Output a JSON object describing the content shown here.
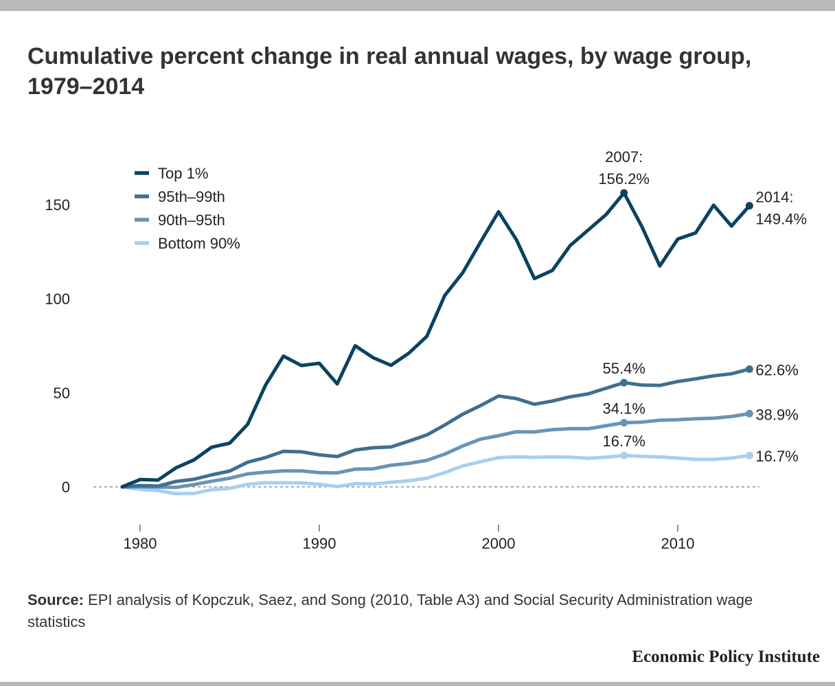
{
  "title": "Cumulative percent change in real annual wages, by wage group, 1979–2014",
  "source": {
    "label": "Source:",
    "text": "EPI analysis of Kopczuk, Saez, and Song (2010, Table A3) and Social Security Administration wage statistics"
  },
  "brand": "Economic Policy Institute",
  "chart_data": {
    "type": "line",
    "title": "Cumulative percent change in real annual wages, by wage group, 1979–2014",
    "xlabel": "",
    "ylabel": "",
    "xlim": [
      1978,
      2015.5
    ],
    "ylim": [
      -20,
      165
    ],
    "x_ticks": [
      1980,
      1990,
      2000,
      2010
    ],
    "y_ticks": [
      0,
      50,
      100,
      150
    ],
    "grid": false,
    "baseline": 0,
    "legend_position": "top-left",
    "x": [
      1979,
      1980,
      1981,
      1982,
      1983,
      1984,
      1985,
      1986,
      1987,
      1988,
      1989,
      1990,
      1991,
      1992,
      1993,
      1994,
      1995,
      1996,
      1997,
      1998,
      1999,
      2000,
      2001,
      2002,
      2003,
      2004,
      2005,
      2006,
      2007,
      2008,
      2009,
      2010,
      2011,
      2012,
      2013,
      2014
    ],
    "series": [
      {
        "name": "Top 1%",
        "color": "#0b4262",
        "values": [
          0,
          3.9,
          3.6,
          10.1,
          14.3,
          21.1,
          23.2,
          33.2,
          54.1,
          69.5,
          64.5,
          65.7,
          54.7,
          75,
          68.7,
          64.6,
          71.1,
          80,
          101.7,
          113.8,
          130.2,
          146.2,
          131.3,
          110.7,
          115,
          128.3,
          136.5,
          144.7,
          156.2,
          138.3,
          117.4,
          131.7,
          135,
          149.7,
          138.6,
          149.4
        ]
      },
      {
        "name": "95th–99th",
        "color": "#3f6f91",
        "values": [
          0,
          0.7,
          0.4,
          2.9,
          4,
          6.4,
          8.4,
          13.1,
          15.6,
          18.9,
          18.6,
          17,
          16.1,
          19.6,
          20.8,
          21.2,
          24.3,
          27.6,
          32.9,
          38.6,
          43.2,
          48.3,
          46.9,
          43.9,
          45.6,
          47.9,
          49.4,
          52.4,
          55.4,
          54.1,
          53.9,
          56,
          57.4,
          59,
          60.1,
          62.6
        ]
      },
      {
        "name": "90th–95th",
        "color": "#6694b9",
        "values": [
          0,
          0,
          -0.1,
          -0.3,
          1.2,
          3,
          4.6,
          6.9,
          7.8,
          8.5,
          8.5,
          7.6,
          7.4,
          9.4,
          9.6,
          11.5,
          12.5,
          14.1,
          17.4,
          21.7,
          25.4,
          27.2,
          29.3,
          29.2,
          30.4,
          30.9,
          30.9,
          32.5,
          34.1,
          34.4,
          35.4,
          35.7,
          36.2,
          36.5,
          37.4,
          38.9
        ]
      },
      {
        "name": "Bottom 90%",
        "color": "#a9cfee",
        "values": [
          0,
          -1.4,
          -2,
          -3.6,
          -3.5,
          -1.5,
          -0.8,
          1.4,
          2.2,
          2.2,
          2.1,
          1.4,
          0.1,
          1.7,
          1.5,
          2.4,
          3.3,
          4.6,
          7.6,
          11.1,
          13.4,
          15.5,
          16,
          15.7,
          15.9,
          15.8,
          15.2,
          15.8,
          16.7,
          16.2,
          15.9,
          15.3,
          14.6,
          14.6,
          15.3,
          16.7
        ]
      }
    ],
    "annotations": [
      {
        "series": 0,
        "x": 2007,
        "lines": [
          "2007:",
          "156.2%"
        ]
      },
      {
        "series": 0,
        "x": 2014,
        "lines": [
          "2014:",
          "149.4%"
        ]
      },
      {
        "series": 1,
        "x": 2007,
        "lines": [
          "55.4%"
        ]
      },
      {
        "series": 1,
        "x": 2014,
        "lines": [
          "62.6%"
        ]
      },
      {
        "series": 2,
        "x": 2007,
        "lines": [
          "34.1%"
        ]
      },
      {
        "series": 2,
        "x": 2014,
        "lines": [
          "38.9%"
        ]
      },
      {
        "series": 3,
        "x": 2007,
        "lines": [
          "16.7%"
        ]
      },
      {
        "series": 3,
        "x": 2014,
        "lines": [
          "16.7%"
        ]
      }
    ]
  }
}
